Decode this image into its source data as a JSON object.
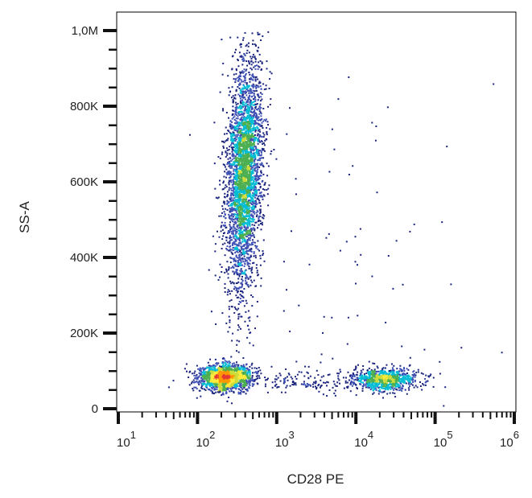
{
  "chart_data": {
    "type": "scatter",
    "subtype": "flow-cytometry density dot plot",
    "title": "",
    "xlabel": "CD28 PE",
    "ylabel": "SS-A",
    "x_scale": "log",
    "xlim": [
      10,
      1000000
    ],
    "x_ticks": [
      {
        "base": "10",
        "exp": "1",
        "value": 10
      },
      {
        "base": "10",
        "exp": "2",
        "value": 100
      },
      {
        "base": "10",
        "exp": "3",
        "value": 1000
      },
      {
        "base": "10",
        "exp": "4",
        "value": 10000
      },
      {
        "base": "10",
        "exp": "5",
        "value": 100000
      },
      {
        "base": "10",
        "exp": "6",
        "value": 1000000
      }
    ],
    "y_scale": "linear",
    "ylim": [
      -8000,
      1045000
    ],
    "y_ticks": [
      {
        "label": "0",
        "value": 0
      },
      {
        "label": "200K",
        "value": 200000
      },
      {
        "label": "400K",
        "value": 400000
      },
      {
        "label": "600K",
        "value": 600000
      },
      {
        "label": "800K",
        "value": 800000
      },
      {
        "label": "1,0M",
        "value": 1000000
      }
    ],
    "y_minor_step": 50000,
    "grid": false,
    "legend": "none",
    "color_scale": [
      "#1a237e",
      "#3f51b5",
      "#00bcd4",
      "#4caf50",
      "#cddc39",
      "#ffeb3b",
      "#ff9800",
      "#e53935"
    ],
    "populations": [
      {
        "x_center": 220,
        "y_center": 85000,
        "x_spread_log": 0.17,
        "y_spread": 17000,
        "events": 1700
      },
      {
        "x_center": 380,
        "y_center": 620000,
        "x_spread_log": 0.11,
        "y_spread": 150000,
        "y_range": [
          150000,
          1000000
        ],
        "events": 3600
      },
      {
        "x_center": 23000,
        "y_center": 80000,
        "x_spread_log": 0.2,
        "y_spread": 15000,
        "events": 900
      },
      {
        "x_center": 2500,
        "y_center": 75000,
        "x_spread_log": 0.45,
        "y_spread": 15000,
        "events": 160
      },
      {
        "x_center": 8000,
        "y_center": 350000,
        "x_spread_log": 0.7,
        "y_spread": 250000,
        "events": 90
      }
    ]
  }
}
